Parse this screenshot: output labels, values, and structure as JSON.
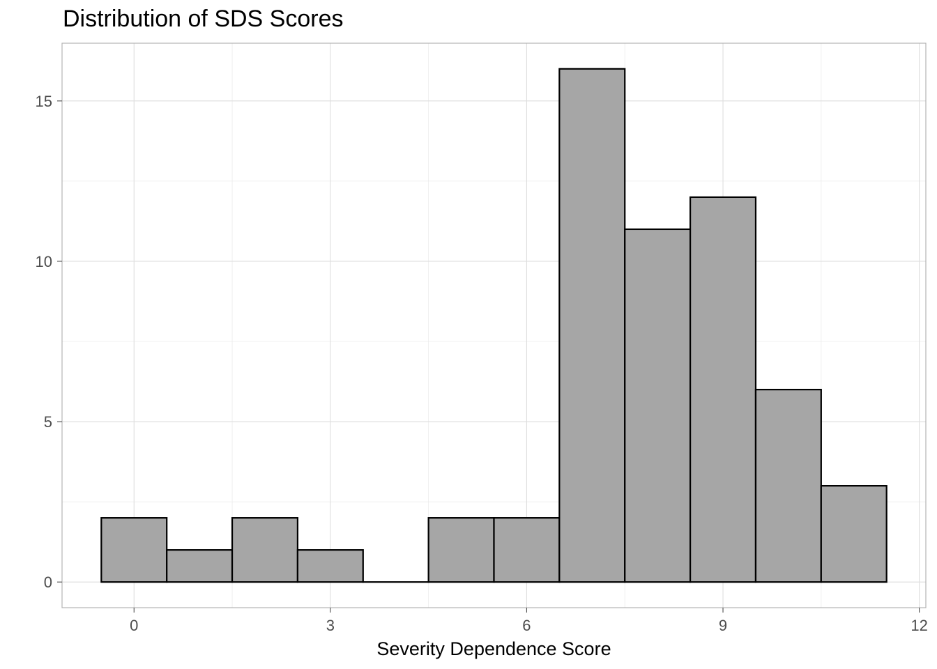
{
  "chart_data": {
    "type": "bar",
    "subtype": "histogram",
    "title": "Distribution of SDS Scores",
    "xlabel": "Severity Dependence Score",
    "ylabel": "",
    "bin_width": 1,
    "bins": [
      {
        "center": 0,
        "count": 2
      },
      {
        "center": 1,
        "count": 1
      },
      {
        "center": 2,
        "count": 2
      },
      {
        "center": 3,
        "count": 1
      },
      {
        "center": 4,
        "count": 0
      },
      {
        "center": 5,
        "count": 2
      },
      {
        "center": 6,
        "count": 2
      },
      {
        "center": 7,
        "count": 16
      },
      {
        "center": 8,
        "count": 11
      },
      {
        "center": 9,
        "count": 12
      },
      {
        "center": 10,
        "count": 6
      },
      {
        "center": 11,
        "count": 3
      }
    ],
    "xlim": [
      -1.1,
      12.1
    ],
    "ylim": [
      -0.8,
      16.8
    ],
    "x_ticks": [
      0,
      3,
      6,
      9,
      12
    ],
    "x_tick_labels": [
      "0",
      "3",
      "6",
      "9",
      "12"
    ],
    "y_ticks": [
      0,
      5,
      10,
      15
    ],
    "y_tick_labels": [
      "0",
      "5",
      "10",
      "15"
    ],
    "grid": true,
    "legend": "none",
    "colors": {
      "bar_fill": "#a6a6a6",
      "bar_outline": "#000000",
      "grid_major": "#dedede",
      "grid_minor": "#ebebeb",
      "panel_border": "#b3b3b3"
    }
  }
}
